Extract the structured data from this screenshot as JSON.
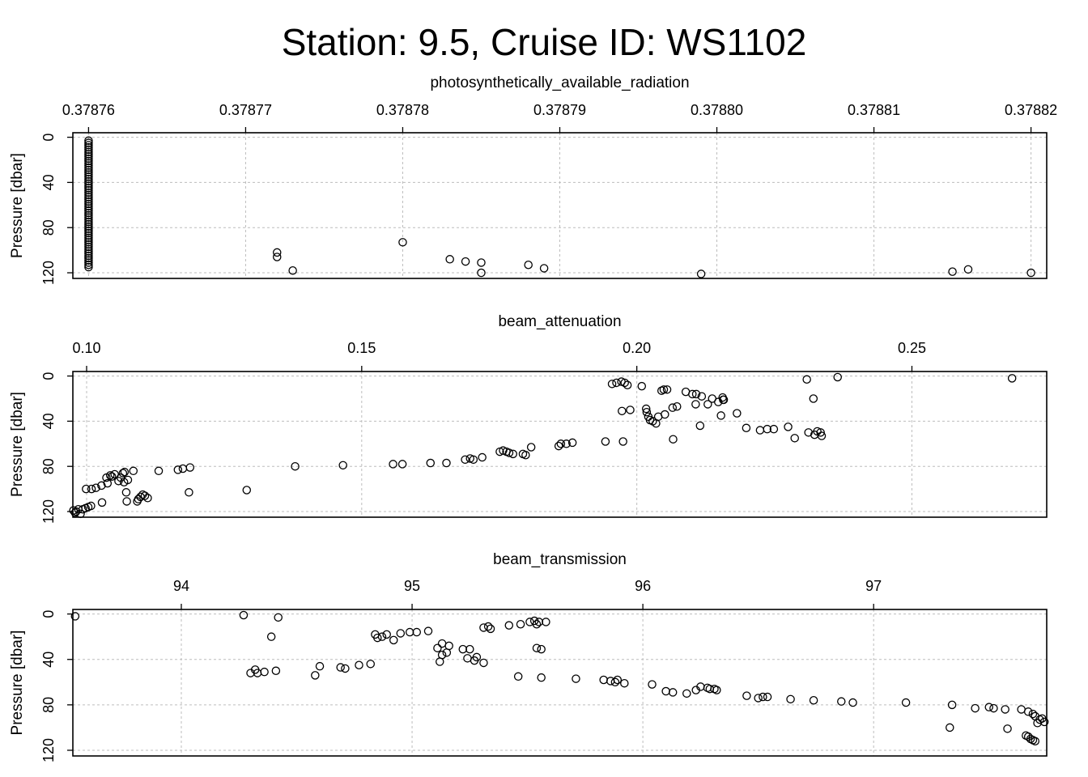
{
  "title": "Station: 9.5, Cruise ID: WS1102",
  "chart_data": [
    {
      "type": "scatter",
      "title": "photosynthetically_available_radiation",
      "xlabel": "photosynthetically_available_radiation",
      "ylabel": "Pressure [dbar]",
      "xlim": [
        0.378759,
        0.378821
      ],
      "ylim": [
        125,
        -4
      ],
      "xticks": [
        "0.37876",
        "0.37877",
        "0.37878",
        "0.37879",
        "0.37880",
        "0.37881",
        "0.37882"
      ],
      "yticks": [
        "0",
        "40",
        "80",
        "120"
      ],
      "grid": true,
      "points": [
        [
          0.37876,
          3
        ],
        [
          0.37876,
          5
        ],
        [
          0.37876,
          7
        ],
        [
          0.37876,
          9
        ],
        [
          0.37876,
          11
        ],
        [
          0.37876,
          13
        ],
        [
          0.37876,
          15
        ],
        [
          0.37876,
          17
        ],
        [
          0.37876,
          19
        ],
        [
          0.37876,
          21
        ],
        [
          0.37876,
          23
        ],
        [
          0.37876,
          25
        ],
        [
          0.37876,
          27
        ],
        [
          0.37876,
          29
        ],
        [
          0.37876,
          31
        ],
        [
          0.37876,
          33
        ],
        [
          0.37876,
          35
        ],
        [
          0.37876,
          37
        ],
        [
          0.37876,
          39
        ],
        [
          0.37876,
          41
        ],
        [
          0.37876,
          43
        ],
        [
          0.37876,
          45
        ],
        [
          0.37876,
          47
        ],
        [
          0.37876,
          49
        ],
        [
          0.37876,
          51
        ],
        [
          0.37876,
          53
        ],
        [
          0.37876,
          55
        ],
        [
          0.37876,
          57
        ],
        [
          0.37876,
          59
        ],
        [
          0.37876,
          61
        ],
        [
          0.37876,
          63
        ],
        [
          0.37876,
          65
        ],
        [
          0.37876,
          67
        ],
        [
          0.37876,
          69
        ],
        [
          0.37876,
          71
        ],
        [
          0.37876,
          73
        ],
        [
          0.37876,
          75
        ],
        [
          0.37876,
          77
        ],
        [
          0.37876,
          79
        ],
        [
          0.37876,
          81
        ],
        [
          0.37876,
          83
        ],
        [
          0.37876,
          85
        ],
        [
          0.37876,
          87
        ],
        [
          0.37876,
          89
        ],
        [
          0.37876,
          91
        ],
        [
          0.37876,
          93
        ],
        [
          0.37876,
          95
        ],
        [
          0.37876,
          97
        ],
        [
          0.37876,
          99
        ],
        [
          0.37876,
          101
        ],
        [
          0.37876,
          103
        ],
        [
          0.37876,
          105
        ],
        [
          0.37876,
          107
        ],
        [
          0.37876,
          109
        ],
        [
          0.37876,
          111
        ],
        [
          0.37876,
          113
        ],
        [
          0.37876,
          115
        ],
        [
          0.378772,
          106
        ],
        [
          0.378772,
          102
        ],
        [
          0.378773,
          118
        ],
        [
          0.37878,
          93
        ],
        [
          0.378783,
          108
        ],
        [
          0.378784,
          110
        ],
        [
          0.378785,
          111
        ],
        [
          0.378785,
          120
        ],
        [
          0.378788,
          113
        ],
        [
          0.378789,
          116
        ],
        [
          0.378799,
          121
        ],
        [
          0.378815,
          119
        ],
        [
          0.378816,
          117
        ],
        [
          0.37882,
          120
        ]
      ]
    },
    {
      "type": "scatter",
      "title": "beam_attenuation",
      "xlabel": "beam_attenuation",
      "ylabel": "Pressure [dbar]",
      "xlim": [
        0.0975,
        0.2745
      ],
      "ylim": [
        125,
        -4
      ],
      "xticks": [
        "0.10",
        "0.15",
        "0.20",
        "0.25"
      ],
      "yticks": [
        "0",
        "40",
        "80",
        "120"
      ],
      "grid": true,
      "points": [
        [
          0.0976,
          119
        ],
        [
          0.0979,
          121
        ],
        [
          0.0981,
          120
        ],
        [
          0.0985,
          118
        ],
        [
          0.0989,
          122
        ],
        [
          0.0993,
          118
        ],
        [
          0.0998,
          117
        ],
        [
          0.1003,
          116
        ],
        [
          0.1008,
          115
        ],
        [
          0.0999,
          100
        ],
        [
          0.1009,
          100
        ],
        [
          0.1017,
          99
        ],
        [
          0.1027,
          97
        ],
        [
          0.1038,
          95
        ],
        [
          0.1036,
          90
        ],
        [
          0.1043,
          88
        ],
        [
          0.1046,
          89
        ],
        [
          0.1051,
          87
        ],
        [
          0.1062,
          90
        ],
        [
          0.1058,
          93
        ],
        [
          0.1068,
          94
        ],
        [
          0.1075,
          92
        ],
        [
          0.1069,
          85
        ],
        [
          0.1066,
          86
        ],
        [
          0.1085,
          84
        ],
        [
          0.1072,
          103
        ],
        [
          0.1073,
          111
        ],
        [
          0.1092,
          111
        ],
        [
          0.1094,
          109
        ],
        [
          0.1098,
          107
        ],
        [
          0.1102,
          105
        ],
        [
          0.1106,
          106
        ],
        [
          0.1111,
          108
        ],
        [
          0.1028,
          112
        ],
        [
          0.1131,
          84
        ],
        [
          0.1166,
          83
        ],
        [
          0.1175,
          82
        ],
        [
          0.1188,
          81
        ],
        [
          0.1186,
          103
        ],
        [
          0.1291,
          101
        ],
        [
          0.1379,
          80
        ],
        [
          0.1466,
          79
        ],
        [
          0.1557,
          78
        ],
        [
          0.1574,
          78
        ],
        [
          0.1625,
          77
        ],
        [
          0.1654,
          77
        ],
        [
          0.1688,
          74
        ],
        [
          0.1697,
          73
        ],
        [
          0.1703,
          74
        ],
        [
          0.1719,
          72
        ],
        [
          0.1751,
          67
        ],
        [
          0.1757,
          66
        ],
        [
          0.1763,
          67
        ],
        [
          0.1768,
          68
        ],
        [
          0.1775,
          69
        ],
        [
          0.1793,
          69
        ],
        [
          0.1798,
          70
        ],
        [
          0.1808,
          63
        ],
        [
          0.1858,
          62
        ],
        [
          0.1862,
          60
        ],
        [
          0.1872,
          60
        ],
        [
          0.1883,
          59
        ],
        [
          0.1943,
          58
        ],
        [
          0.1975,
          58
        ],
        [
          0.1955,
          7
        ],
        [
          0.1963,
          6
        ],
        [
          0.1972,
          5
        ],
        [
          0.1978,
          6
        ],
        [
          0.1983,
          8
        ],
        [
          0.2009,
          9
        ],
        [
          0.1973,
          31
        ],
        [
          0.1988,
          30
        ],
        [
          0.2017,
          29
        ],
        [
          0.2018,
          32
        ],
        [
          0.2021,
          36
        ],
        [
          0.2024,
          39
        ],
        [
          0.2029,
          40
        ],
        [
          0.2035,
          42
        ],
        [
          0.2039,
          36
        ],
        [
          0.2051,
          34
        ],
        [
          0.2055,
          12
        ],
        [
          0.2045,
          13
        ],
        [
          0.2049,
          12
        ],
        [
          0.2065,
          28
        ],
        [
          0.2073,
          27
        ],
        [
          0.2066,
          56
        ],
        [
          0.2089,
          14
        ],
        [
          0.2101,
          16
        ],
        [
          0.2108,
          16
        ],
        [
          0.2118,
          18
        ],
        [
          0.2107,
          25
        ],
        [
          0.2129,
          25
        ],
        [
          0.2115,
          44
        ],
        [
          0.2137,
          20
        ],
        [
          0.2148,
          23
        ],
        [
          0.2157,
          21
        ],
        [
          0.2153,
          35
        ],
        [
          0.2156,
          19
        ],
        [
          0.2158,
          21
        ],
        [
          0.2182,
          33
        ],
        [
          0.2199,
          46
        ],
        [
          0.2224,
          48
        ],
        [
          0.2237,
          47
        ],
        [
          0.2249,
          47
        ],
        [
          0.2275,
          45
        ],
        [
          0.2287,
          55
        ],
        [
          0.2309,
          3
        ],
        [
          0.2321,
          20
        ],
        [
          0.2312,
          50
        ],
        [
          0.2323,
          52
        ],
        [
          0.2328,
          49
        ],
        [
          0.2334,
          50
        ],
        [
          0.2336,
          53
        ],
        [
          0.2365,
          1
        ],
        [
          0.2682,
          2
        ]
      ]
    },
    {
      "type": "scatter",
      "title": "beam_transmission",
      "xlabel": "beam_transmission",
      "ylabel": "Pressure [dbar]",
      "xlim": [
        93.53,
        97.75
      ],
      "ylim": [
        125,
        -4
      ],
      "xticks": [
        "94",
        "95",
        "96",
        "97"
      ],
      "yticks": [
        "0",
        "40",
        "80",
        "120"
      ],
      "grid": true,
      "points": [
        [
          93.54,
          2
        ],
        [
          94.27,
          1
        ],
        [
          94.42,
          3
        ],
        [
          94.39,
          20
        ],
        [
          94.32,
          49
        ],
        [
          94.36,
          51
        ],
        [
          94.41,
          50
        ],
        [
          94.3,
          52
        ],
        [
          94.33,
          52
        ],
        [
          94.58,
          54
        ],
        [
          94.6,
          46
        ],
        [
          94.69,
          47
        ],
        [
          94.71,
          48
        ],
        [
          94.77,
          45
        ],
        [
          94.82,
          44
        ],
        [
          94.84,
          18
        ],
        [
          94.85,
          21
        ],
        [
          94.87,
          20
        ],
        [
          94.89,
          18
        ],
        [
          94.92,
          23
        ],
        [
          94.95,
          17
        ],
        [
          94.99,
          16
        ],
        [
          95.02,
          16
        ],
        [
          95.07,
          15
        ],
        [
          95.11,
          30
        ],
        [
          95.13,
          26
        ],
        [
          95.15,
          34
        ],
        [
          95.13,
          36
        ],
        [
          95.16,
          28
        ],
        [
          95.12,
          42
        ],
        [
          95.22,
          31
        ],
        [
          95.25,
          31
        ],
        [
          95.24,
          39
        ],
        [
          95.28,
          38
        ],
        [
          95.31,
          43
        ],
        [
          95.27,
          41
        ],
        [
          95.31,
          12
        ],
        [
          95.33,
          11
        ],
        [
          95.34,
          13
        ],
        [
          95.42,
          10
        ],
        [
          95.47,
          9
        ],
        [
          95.51,
          7
        ],
        [
          95.53,
          6
        ],
        [
          95.55,
          7
        ],
        [
          95.58,
          7
        ],
        [
          95.54,
          9
        ],
        [
          95.54,
          30
        ],
        [
          95.56,
          31
        ],
        [
          95.46,
          55
        ],
        [
          95.56,
          56
        ],
        [
          95.71,
          57
        ],
        [
          95.83,
          58
        ],
        [
          95.86,
          59
        ],
        [
          95.88,
          60
        ],
        [
          95.89,
          58
        ],
        [
          95.92,
          61
        ],
        [
          96.04,
          62
        ],
        [
          96.1,
          68
        ],
        [
          96.13,
          69
        ],
        [
          96.19,
          70
        ],
        [
          96.23,
          67
        ],
        [
          96.25,
          64
        ],
        [
          96.28,
          65
        ],
        [
          96.29,
          66
        ],
        [
          96.31,
          66
        ],
        [
          96.32,
          67
        ],
        [
          96.45,
          72
        ],
        [
          96.5,
          74
        ],
        [
          96.52,
          73
        ],
        [
          96.54,
          73
        ],
        [
          96.64,
          75
        ],
        [
          96.74,
          76
        ],
        [
          96.86,
          77
        ],
        [
          96.91,
          78
        ],
        [
          97.14,
          78
        ],
        [
          97.34,
          80
        ],
        [
          97.33,
          100
        ],
        [
          97.44,
          83
        ],
        [
          97.5,
          82
        ],
        [
          97.52,
          83
        ],
        [
          97.57,
          84
        ],
        [
          97.58,
          101
        ],
        [
          97.64,
          84
        ],
        [
          97.67,
          86
        ],
        [
          97.69,
          88
        ],
        [
          97.7,
          90
        ],
        [
          97.72,
          93
        ],
        [
          97.71,
          96
        ],
        [
          97.74,
          95
        ],
        [
          97.73,
          92
        ],
        [
          97.66,
          107
        ],
        [
          97.67,
          108
        ],
        [
          97.68,
          110
        ],
        [
          97.69,
          111
        ],
        [
          97.7,
          112
        ]
      ]
    }
  ]
}
